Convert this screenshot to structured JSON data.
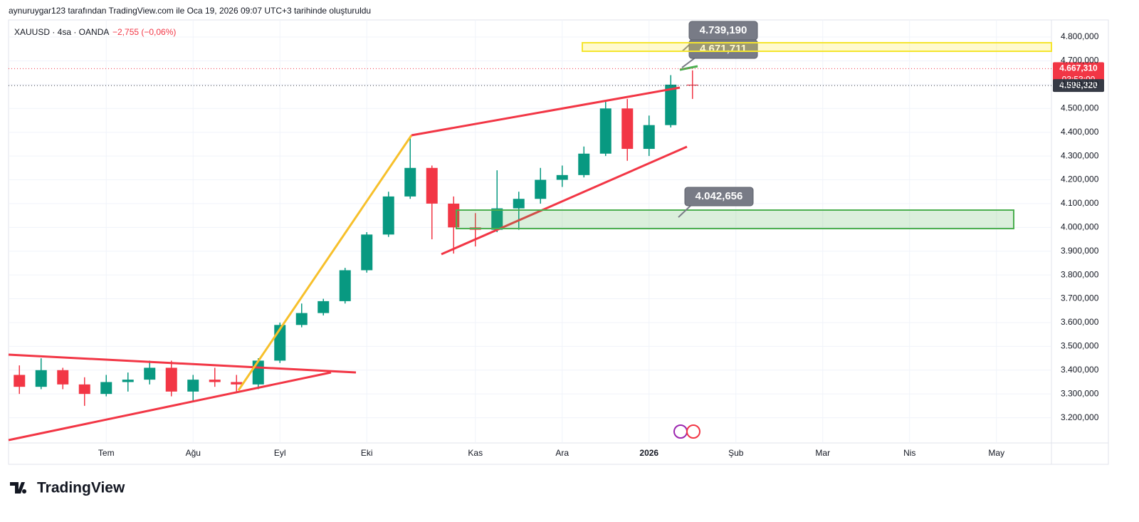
{
  "header": {
    "attribution": "aynuruygar123 tarafından TradingView.com ile Oca 19, 2026 09:07 UTC+3 tarihinde oluşturuldu"
  },
  "chart_data": {
    "type": "candlestick",
    "title": "XAUUSD · 4sa · OANDA",
    "change_label": "−2,755 (−0,06%)",
    "categories": [
      null,
      null,
      null,
      null,
      "Tem",
      null,
      null,
      null,
      "Ağu",
      null,
      null,
      null,
      "Eyl",
      null,
      null,
      null,
      "Eki",
      null,
      null,
      null,
      null,
      "Kas",
      null,
      null,
      null,
      "Ara",
      null,
      null,
      null,
      "2026",
      null,
      null,
      null,
      "Şub",
      null,
      null,
      null,
      "Mar",
      null,
      null,
      null,
      "Nis",
      null,
      null,
      null,
      "May",
      null,
      null
    ],
    "open": [
      3380,
      3330,
      3400,
      3340,
      3300,
      3350,
      3360,
      3410,
      3310,
      3360,
      3350,
      3340,
      3440,
      3590,
      3640,
      3690,
      3820,
      3970,
      4130,
      4250,
      4100,
      4000,
      3990,
      4080,
      4120,
      4200,
      4220,
      4310,
      4500,
      4330,
      4430,
      4600,
      null,
      null,
      null,
      null,
      null,
      null,
      null,
      null,
      null,
      null,
      null,
      null,
      null,
      null,
      null,
      null
    ],
    "high": [
      3420,
      3450,
      3410,
      3370,
      3380,
      3390,
      3440,
      3440,
      3380,
      3410,
      3380,
      3450,
      3600,
      3680,
      3700,
      3830,
      3980,
      4150,
      4380,
      4260,
      4130,
      4060,
      4240,
      4150,
      4250,
      4260,
      4340,
      4530,
      4540,
      4470,
      4640,
      4660,
      null,
      null,
      null,
      null,
      null,
      null,
      null,
      null,
      null,
      null,
      null,
      null,
      null,
      null,
      null,
      null
    ],
    "low": [
      3300,
      3320,
      3320,
      3250,
      3290,
      3310,
      3340,
      3290,
      3270,
      3330,
      3310,
      3320,
      3430,
      3580,
      3630,
      3680,
      3810,
      3960,
      4120,
      3950,
      3890,
      3920,
      3980,
      3990,
      4100,
      4170,
      4210,
      4300,
      4280,
      4300,
      4420,
      4540,
      null,
      null,
      null,
      null,
      null,
      null,
      null,
      null,
      null,
      null,
      null,
      null,
      null,
      null,
      null,
      null
    ],
    "close": [
      3330,
      3400,
      3340,
      3300,
      3350,
      3360,
      3410,
      3310,
      3360,
      3350,
      3340,
      3440,
      3590,
      3640,
      3690,
      3820,
      3970,
      4130,
      4250,
      4100,
      4000,
      3990,
      4080,
      4120,
      4200,
      4220,
      4310,
      4500,
      4330,
      4430,
      4600,
      4596.32,
      null,
      null,
      null,
      null,
      null,
      null,
      null,
      null,
      null,
      null,
      null,
      null,
      null,
      null,
      null,
      null
    ],
    "up_color": "#089981",
    "down_color": "#f23645",
    "ylim": [
      3100,
      4872
    ],
    "yticks": [
      {
        "value": 3200,
        "label": "3.200,000"
      },
      {
        "value": 3300,
        "label": "3.300,000"
      },
      {
        "value": 3400,
        "label": "3.400,000"
      },
      {
        "value": 3500,
        "label": "3.500,000"
      },
      {
        "value": 3600,
        "label": "3.600,000"
      },
      {
        "value": 3700,
        "label": "3.700,000"
      },
      {
        "value": 3800,
        "label": "3.800,000"
      },
      {
        "value": 3900,
        "label": "3.900,000"
      },
      {
        "value": 4000,
        "label": "4.000,000"
      },
      {
        "value": 4100,
        "label": "4.100,000"
      },
      {
        "value": 4200,
        "label": "4.200,000"
      },
      {
        "value": 4300,
        "label": "4.300,000"
      },
      {
        "value": 4400,
        "label": "4.400,000"
      },
      {
        "value": 4500,
        "label": "4.500,000"
      },
      {
        "value": 4600,
        "label": "4.600,000"
      },
      {
        "value": 4700,
        "label": "4.700,000"
      },
      {
        "value": 4800,
        "label": "4.800,000"
      }
    ],
    "grid": true,
    "price_tags": [
      {
        "value": 4667.31,
        "label": "4.667,310",
        "color": "#f23645"
      },
      {
        "value": 4596.32,
        "label": "4.596,320",
        "color": "#363a45"
      }
    ],
    "countdown": "03:53:00",
    "annotations": [
      {
        "value": 4739.19,
        "label": "4.739,190"
      },
      {
        "value": 4671.711,
        "label": "4.671,711"
      },
      {
        "value": 4042.656,
        "label": "4.042,656"
      }
    ]
  },
  "footer": {
    "brand": "TradingView"
  }
}
